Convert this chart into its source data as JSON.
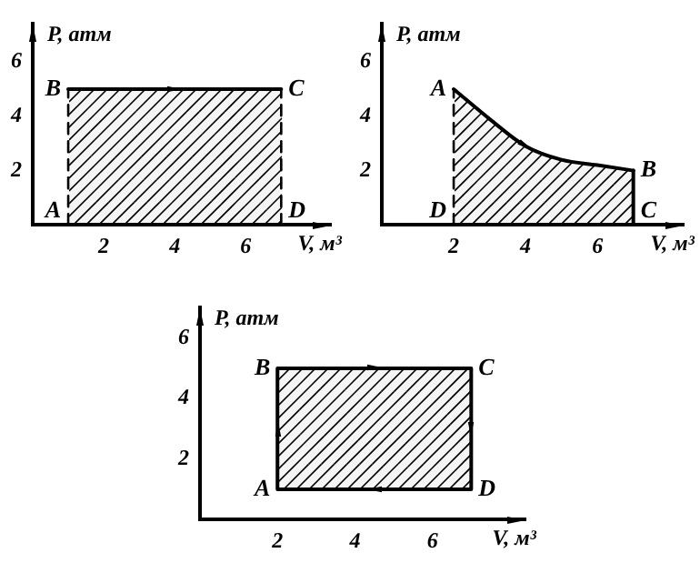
{
  "chart_data": [
    {
      "type": "line",
      "xlabel": "V, м³",
      "ylabel": "P, атм",
      "xlim": [
        0,
        8.4
      ],
      "ylim": [
        0,
        7.4
      ],
      "xticks": [
        2,
        4,
        6
      ],
      "yticks": [
        2,
        4,
        6
      ],
      "marker": "none",
      "series": [
        {
          "type": "area",
          "color": "#000000",
          "x": [
            1,
            7
          ],
          "values": [
            5,
            5
          ],
          "line_style": "solid"
        },
        {
          "color": "#000000",
          "x": [
            1,
            1
          ],
          "values": [
            0,
            5
          ],
          "line_style": "dashed"
        },
        {
          "color": "#000000",
          "x": [
            7,
            7
          ],
          "values": [
            0,
            5
          ],
          "line_style": "dashed"
        }
      ],
      "annotations": [
        {
          "text": "A",
          "x": 1,
          "y": 0
        },
        {
          "text": "B",
          "x": 1,
          "y": 5
        },
        {
          "text": "C",
          "x": 7,
          "y": 5
        },
        {
          "text": "D",
          "x": 7,
          "y": 0
        }
      ]
    },
    {
      "type": "line",
      "xlabel": "V, м³",
      "ylabel": "P, атм",
      "xlim": [
        0,
        8.4
      ],
      "ylim": [
        0,
        7.4
      ],
      "xticks": [
        2,
        4,
        6
      ],
      "yticks": [
        2,
        4,
        6
      ],
      "marker": "none",
      "series": [
        {
          "type": "area",
          "color": "#000000",
          "x": [
            2,
            3,
            4,
            5,
            6,
            7
          ],
          "values": [
            5,
            3.9,
            2.9,
            2.4,
            2.2,
            2
          ],
          "line_style": "solid"
        },
        {
          "color": "#000000",
          "x": [
            2,
            2
          ],
          "values": [
            0,
            5
          ],
          "line_style": "dashed"
        },
        {
          "color": "#000000",
          "x": [
            7,
            7
          ],
          "values": [
            0,
            2
          ],
          "line_style": "solid"
        }
      ],
      "annotations": [
        {
          "text": "A",
          "x": 2,
          "y": 5
        },
        {
          "text": "B",
          "x": 7,
          "y": 2
        },
        {
          "text": "C",
          "x": 7,
          "y": 0
        },
        {
          "text": "D",
          "x": 2,
          "y": 0
        }
      ]
    },
    {
      "type": "line",
      "xlabel": "V, м³",
      "ylabel": "P, атм",
      "xlim": [
        0,
        8.4
      ],
      "ylim": [
        0,
        7
      ],
      "xticks": [
        2,
        4,
        6
      ],
      "yticks": [
        2,
        4,
        6
      ],
      "marker": "none",
      "series": [
        {
          "type": "area",
          "color": "#000000",
          "x": [
            2,
            2,
            7,
            7,
            2
          ],
          "values": [
            1,
            5,
            5,
            1,
            1
          ],
          "line_style": "solid"
        }
      ],
      "annotations": [
        {
          "text": "A",
          "x": 2,
          "y": 1
        },
        {
          "text": "B",
          "x": 2,
          "y": 5
        },
        {
          "text": "C",
          "x": 7,
          "y": 5
        },
        {
          "text": "D",
          "x": 7,
          "y": 1
        }
      ]
    }
  ]
}
